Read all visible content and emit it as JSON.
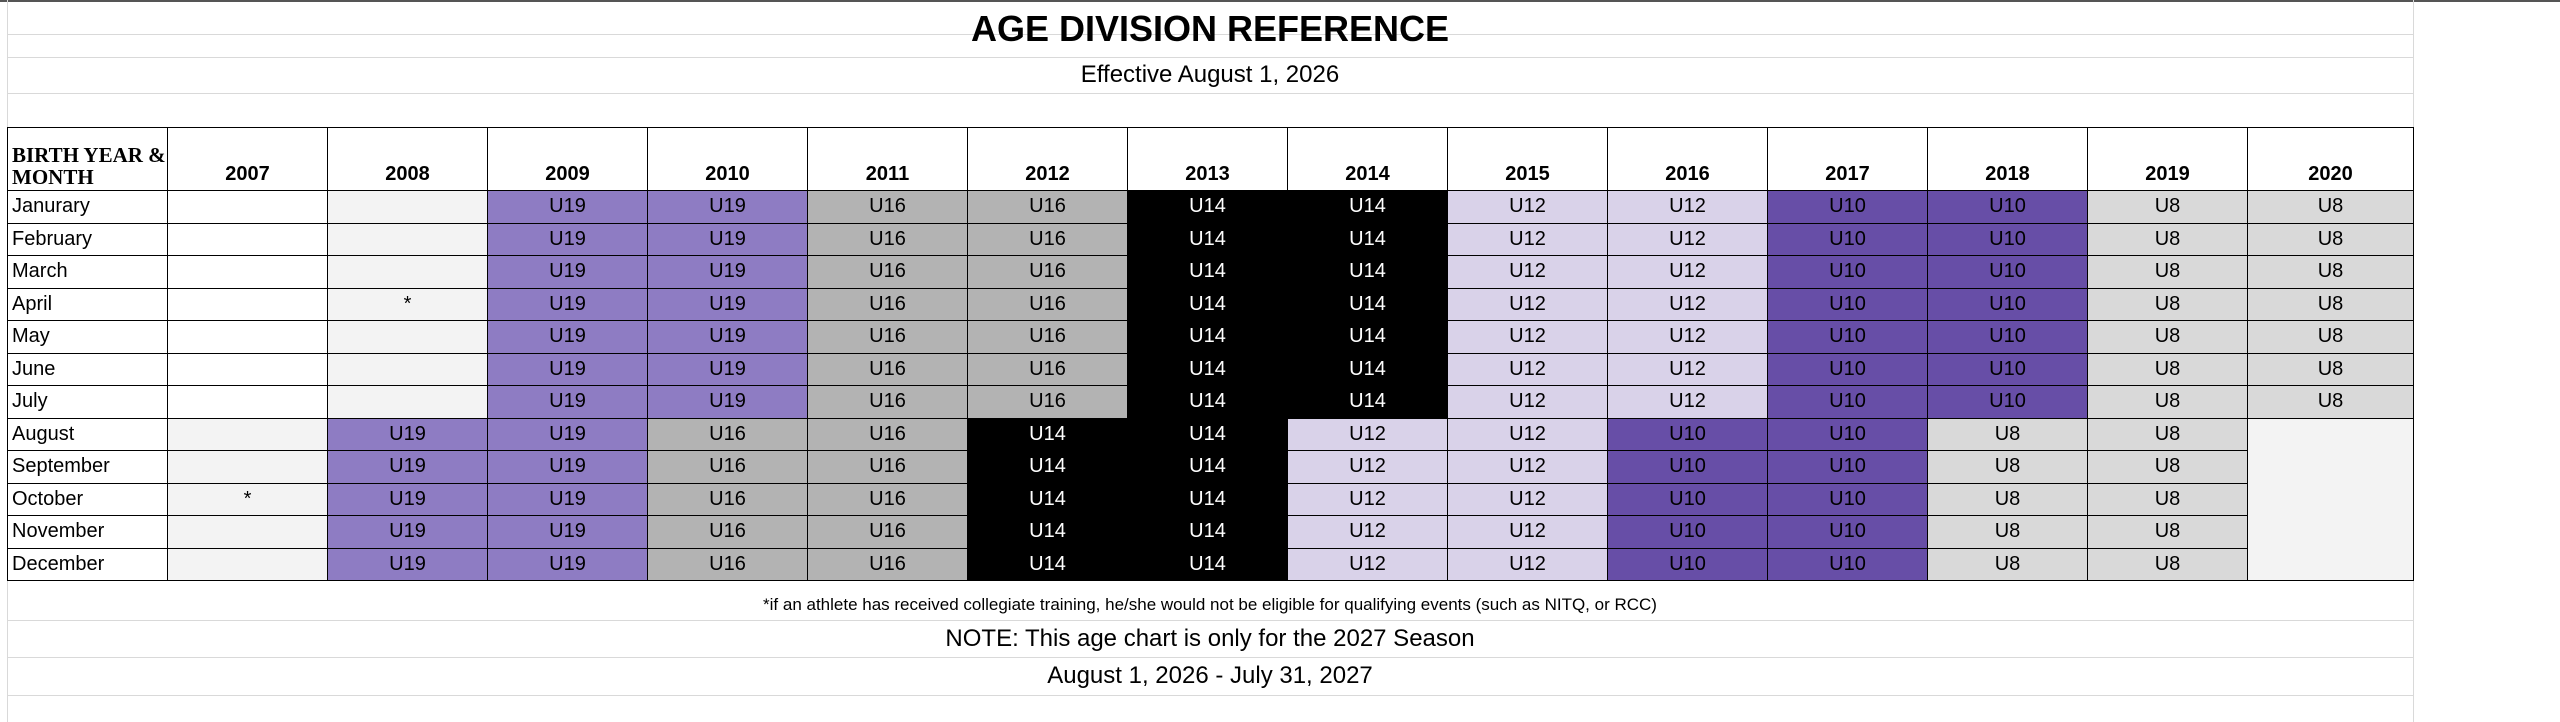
{
  "title": "AGE DIVISION REFERENCE",
  "subtitle": "Effective August 1, 2026",
  "table": {
    "corner_label": "BIRTH YEAR & MONTH",
    "years": [
      "2007",
      "2008",
      "2009",
      "2010",
      "2011",
      "2012",
      "2013",
      "2014",
      "2015",
      "2016",
      "2017",
      "2018",
      "2019",
      "2020"
    ],
    "rows": [
      {
        "month": "Janurary",
        "cells": [
          "",
          "",
          "U19",
          "U19",
          "U16",
          "U16",
          "U14",
          "U14",
          "U12",
          "U12",
          "U10",
          "U10",
          "U8",
          "U8"
        ]
      },
      {
        "month": "February",
        "cells": [
          "",
          "",
          "U19",
          "U19",
          "U16",
          "U16",
          "U14",
          "U14",
          "U12",
          "U12",
          "U10",
          "U10",
          "U8",
          "U8"
        ]
      },
      {
        "month": "March",
        "cells": [
          "",
          "",
          "U19",
          "U19",
          "U16",
          "U16",
          "U14",
          "U14",
          "U12",
          "U12",
          "U10",
          "U10",
          "U8",
          "U8"
        ]
      },
      {
        "month": "April",
        "cells": [
          "",
          "*",
          "U19",
          "U19",
          "U16",
          "U16",
          "U14",
          "U14",
          "U12",
          "U12",
          "U10",
          "U10",
          "U8",
          "U8"
        ]
      },
      {
        "month": "May",
        "cells": [
          "",
          "",
          "U19",
          "U19",
          "U16",
          "U16",
          "U14",
          "U14",
          "U12",
          "U12",
          "U10",
          "U10",
          "U8",
          "U8"
        ]
      },
      {
        "month": "June",
        "cells": [
          "",
          "",
          "U19",
          "U19",
          "U16",
          "U16",
          "U14",
          "U14",
          "U12",
          "U12",
          "U10",
          "U10",
          "U8",
          "U8"
        ]
      },
      {
        "month": "July",
        "cells": [
          "",
          "",
          "U19",
          "U19",
          "U16",
          "U16",
          "U14",
          "U14",
          "U12",
          "U12",
          "U10",
          "U10",
          "U8",
          "U8"
        ]
      },
      {
        "month": "August",
        "cells": [
          "",
          "U19",
          "U19",
          "U16",
          "U16",
          "U14",
          "U14",
          "U12",
          "U12",
          "U10",
          "U10",
          "U8",
          "U8",
          ""
        ]
      },
      {
        "month": "September",
        "cells": [
          "",
          "U19",
          "U19",
          "U16",
          "U16",
          "U14",
          "U14",
          "U12",
          "U12",
          "U10",
          "U10",
          "U8",
          "U8",
          ""
        ]
      },
      {
        "month": "October",
        "cells": [
          "*",
          "U19",
          "U19",
          "U16",
          "U16",
          "U14",
          "U14",
          "U12",
          "U12",
          "U10",
          "U10",
          "U8",
          "U8",
          ""
        ]
      },
      {
        "month": "November",
        "cells": [
          "",
          "U19",
          "U19",
          "U16",
          "U16",
          "U14",
          "U14",
          "U12",
          "U12",
          "U10",
          "U10",
          "U8",
          "U8",
          ""
        ]
      },
      {
        "month": "December",
        "cells": [
          "",
          "U19",
          "U19",
          "U16",
          "U16",
          "U14",
          "U14",
          "U12",
          "U12",
          "U10",
          "U10",
          "U8",
          "U8",
          ""
        ]
      }
    ]
  },
  "colors": {
    "U19": "#8e7cc3",
    "U16": "#b3b3b3",
    "U14": "#000000",
    "U12": "#d9d2e9",
    "U10": "#674ea7",
    "U8": "#d9d9d9",
    "ineligible": "#f3f3f3"
  },
  "footnote": "*if an athlete has received collegiate training, he/she would not be eligible for qualifying events (such as NITQ, or RCC)",
  "note": "NOTE: This age chart is only for the 2027 Season",
  "season_dates": "August 1, 2026 - July 31, 2027"
}
